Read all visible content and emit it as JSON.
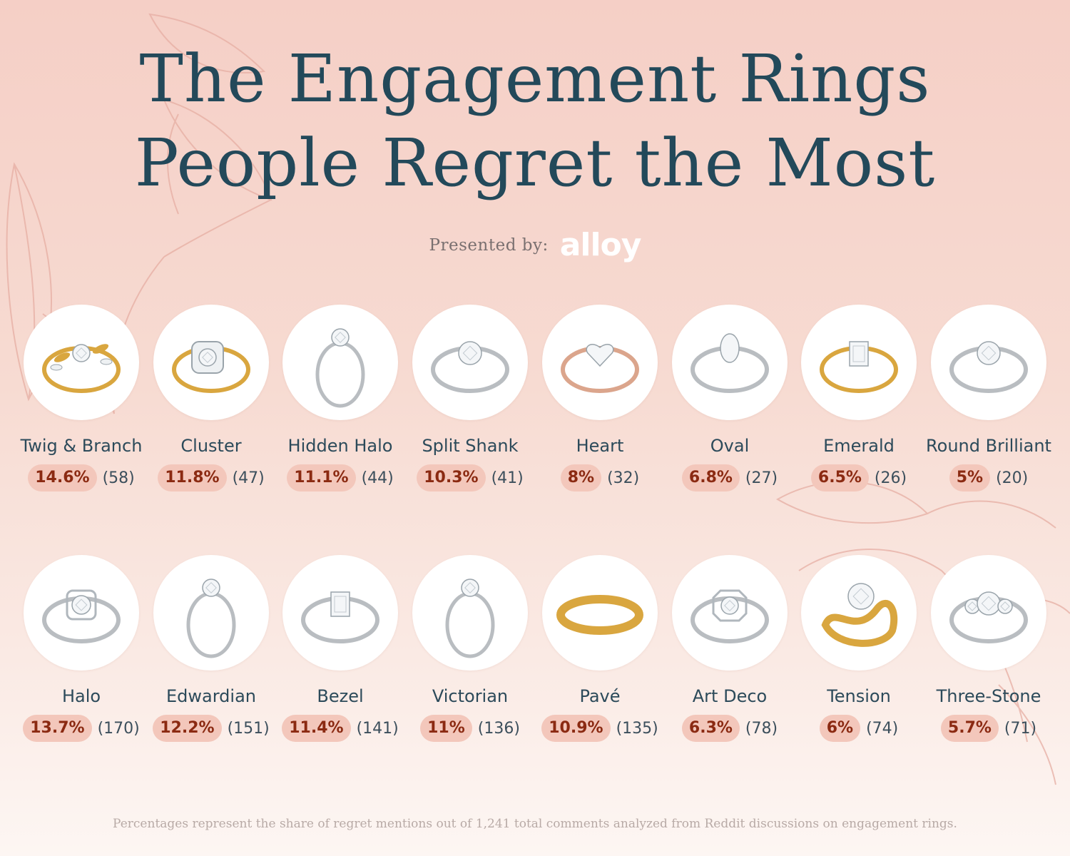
{
  "title_line1": "The Engagement Rings",
  "title_line2": "People Regret the Most",
  "presented_by": "Presented by:",
  "brand": "alloy",
  "colors": {
    "title": "#23495a",
    "percent_text": "#8b2a12",
    "percent_pill": "#f3c7bb",
    "name_text": "#2c4a5a",
    "background_top": "#f5cfc6",
    "background_bottom": "#fdf6f3"
  },
  "row1": [
    {
      "name": "Twig & Branch",
      "percent": "14.6%",
      "count": "(58)",
      "icon": "twig-branch-ring-icon",
      "metal": "gold"
    },
    {
      "name": "Cluster",
      "percent": "11.8%",
      "count": "(47)",
      "icon": "cluster-ring-icon",
      "metal": "gold"
    },
    {
      "name": "Hidden Halo",
      "percent": "11.1%",
      "count": "(44)",
      "icon": "hidden-halo-ring-icon",
      "metal": "silver"
    },
    {
      "name": "Split Shank",
      "percent": "10.3%",
      "count": "(41)",
      "icon": "split-shank-ring-icon",
      "metal": "silver"
    },
    {
      "name": "Heart",
      "percent": "8%",
      "count": "(32)",
      "icon": "heart-ring-icon",
      "metal": "rose"
    },
    {
      "name": "Oval",
      "percent": "6.8%",
      "count": "(27)",
      "icon": "oval-ring-icon",
      "metal": "silver"
    },
    {
      "name": "Emerald",
      "percent": "6.5%",
      "count": "(26)",
      "icon": "emerald-ring-icon",
      "metal": "gold"
    },
    {
      "name": "Round Brilliant",
      "percent": "5%",
      "count": "(20)",
      "icon": "round-brilliant-ring-icon",
      "metal": "silver"
    }
  ],
  "row2": [
    {
      "name": "Halo",
      "percent": "13.7%",
      "count": "(170)",
      "icon": "halo-ring-icon",
      "metal": "silver"
    },
    {
      "name": "Edwardian",
      "percent": "12.2%",
      "count": "(151)",
      "icon": "edwardian-ring-icon",
      "metal": "silver"
    },
    {
      "name": "Bezel",
      "percent": "11.4%",
      "count": "(141)",
      "icon": "bezel-ring-icon",
      "metal": "silver"
    },
    {
      "name": "Victorian",
      "percent": "11%",
      "count": "(136)",
      "icon": "victorian-ring-icon",
      "metal": "silver"
    },
    {
      "name": "Pavé",
      "percent": "10.9%",
      "count": "(135)",
      "icon": "pave-ring-icon",
      "metal": "gold"
    },
    {
      "name": "Art Deco",
      "percent": "6.3%",
      "count": "(78)",
      "icon": "art-deco-ring-icon",
      "metal": "silver"
    },
    {
      "name": "Tension",
      "percent": "6%",
      "count": "(74)",
      "icon": "tension-ring-icon",
      "metal": "gold"
    },
    {
      "name": "Three-Stone",
      "percent": "5.7%",
      "count": "(71)",
      "icon": "three-stone-ring-icon",
      "metal": "silver"
    }
  ],
  "footnote": "Percentages represent the share of regret mentions out of 1,241 total comments analyzed from Reddit discussions on engagement rings."
}
